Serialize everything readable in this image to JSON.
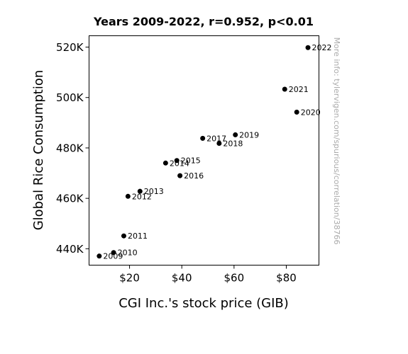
{
  "chart_data": {
    "type": "scatter",
    "title": "Years 2009-2022, r=0.952, p<0.01",
    "xlabel": "CGI Inc.'s stock price (GIB)",
    "ylabel": "Global Rice Consumption",
    "xlim": [
      4.5,
      92.5
    ],
    "ylim": [
      433.5,
      524.5
    ],
    "x_ticks": [
      20,
      40,
      60,
      80
    ],
    "x_tick_labels": [
      "$20",
      "$40",
      "$60",
      "$80"
    ],
    "y_ticks": [
      440,
      460,
      480,
      500,
      520
    ],
    "y_tick_labels": [
      "440K",
      "460K",
      "480K",
      "500K",
      "520K"
    ],
    "grid": false,
    "marker_color": "#000000",
    "points": [
      {
        "year": "2009",
        "x": 8.4,
        "y": 437.1
      },
      {
        "year": "2010",
        "x": 13.9,
        "y": 438.5
      },
      {
        "year": "2011",
        "x": 17.8,
        "y": 445.1
      },
      {
        "year": "2012",
        "x": 19.4,
        "y": 460.8
      },
      {
        "year": "2013",
        "x": 24.0,
        "y": 462.8
      },
      {
        "year": "2014",
        "x": 33.8,
        "y": 474.0
      },
      {
        "year": "2015",
        "x": 38.1,
        "y": 475.0
      },
      {
        "year": "2016",
        "x": 39.3,
        "y": 469.0
      },
      {
        "year": "2017",
        "x": 48.0,
        "y": 483.8
      },
      {
        "year": "2018",
        "x": 54.3,
        "y": 481.8
      },
      {
        "year": "2019",
        "x": 60.5,
        "y": 485.2
      },
      {
        "year": "2020",
        "x": 84.0,
        "y": 494.2
      },
      {
        "year": "2021",
        "x": 79.4,
        "y": 503.3
      },
      {
        "year": "2022",
        "x": 88.3,
        "y": 519.8
      }
    ]
  },
  "watermark": "More info: tylervigen.com/spurious/correlation/38766"
}
